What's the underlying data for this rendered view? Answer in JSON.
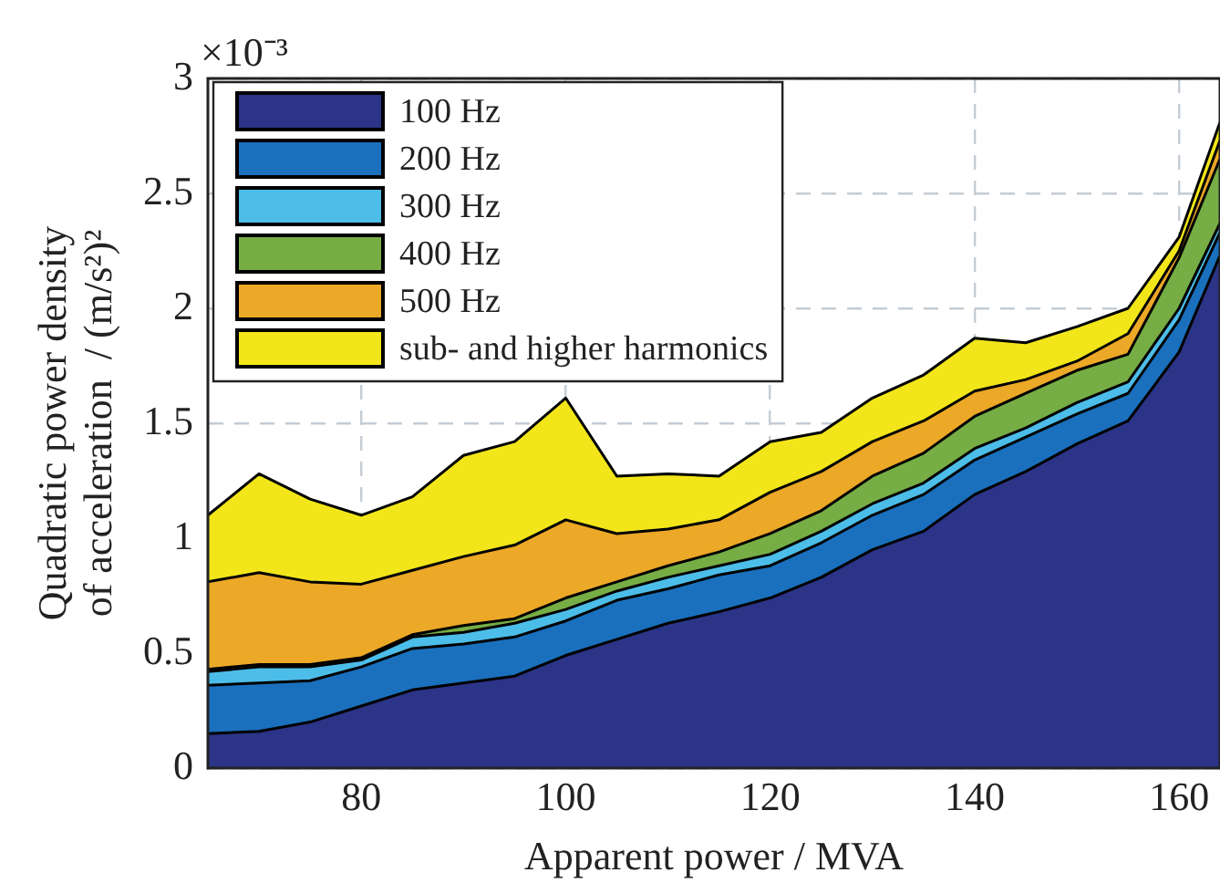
{
  "chart_data": {
    "type": "area",
    "stacked": true,
    "xlabel": "Apparent power / MVA",
    "ylabel": "Quadratic power density of acceleration  / (m/s²)²",
    "annotations": [
      "×10⁻³"
    ],
    "x": [
      65,
      70,
      75,
      80,
      85,
      90,
      95,
      100,
      105,
      110,
      115,
      120,
      125,
      130,
      135,
      140,
      145,
      150,
      155,
      160,
      164
    ],
    "xlim": [
      65,
      164
    ],
    "xticks": [
      80,
      100,
      120,
      140,
      160
    ],
    "ylim": [
      0,
      3
    ],
    "yticks": [
      0,
      0.5,
      1,
      1.5,
      2,
      2.5,
      3
    ],
    "grid": true,
    "legend": "top left",
    "series": [
      {
        "name": "100 Hz",
        "color": "#2b3486",
        "values": [
          0.15,
          0.16,
          0.2,
          0.27,
          0.34,
          0.37,
          0.4,
          0.49,
          0.56,
          0.63,
          0.68,
          0.74,
          0.83,
          0.95,
          1.03,
          1.19,
          1.29,
          1.41,
          1.51,
          1.81,
          2.23
        ]
      },
      {
        "name": "200 Hz",
        "color": "#1a70bd",
        "values": [
          0.21,
          0.21,
          0.18,
          0.17,
          0.18,
          0.17,
          0.17,
          0.15,
          0.17,
          0.15,
          0.16,
          0.14,
          0.15,
          0.15,
          0.16,
          0.15,
          0.15,
          0.13,
          0.12,
          0.14,
          0.1
        ]
      },
      {
        "name": "300 Hz",
        "color": "#4cbde8",
        "values": [
          0.06,
          0.07,
          0.06,
          0.03,
          0.05,
          0.05,
          0.06,
          0.05,
          0.04,
          0.05,
          0.04,
          0.05,
          0.05,
          0.05,
          0.05,
          0.05,
          0.04,
          0.05,
          0.05,
          0.05,
          0.04
        ]
      },
      {
        "name": "400 Hz",
        "color": "#77ad45",
        "values": [
          0.01,
          0.01,
          0.01,
          0.01,
          0.01,
          0.03,
          0.02,
          0.05,
          0.04,
          0.05,
          0.06,
          0.09,
          0.09,
          0.12,
          0.13,
          0.14,
          0.15,
          0.14,
          0.12,
          0.22,
          0.28
        ]
      },
      {
        "name": "500 Hz",
        "color": "#eca827",
        "values": [
          0.38,
          0.4,
          0.36,
          0.32,
          0.28,
          0.3,
          0.32,
          0.34,
          0.21,
          0.16,
          0.14,
          0.18,
          0.17,
          0.15,
          0.14,
          0.11,
          0.06,
          0.04,
          0.09,
          0.03,
          0.08
        ]
      },
      {
        "name": "sub- and higher harmonics",
        "color": "#f2e61a",
        "values": [
          0.29,
          0.43,
          0.36,
          0.3,
          0.32,
          0.44,
          0.45,
          0.53,
          0.25,
          0.24,
          0.19,
          0.22,
          0.17,
          0.19,
          0.2,
          0.23,
          0.16,
          0.15,
          0.11,
          0.06,
          0.08
        ]
      }
    ]
  }
}
